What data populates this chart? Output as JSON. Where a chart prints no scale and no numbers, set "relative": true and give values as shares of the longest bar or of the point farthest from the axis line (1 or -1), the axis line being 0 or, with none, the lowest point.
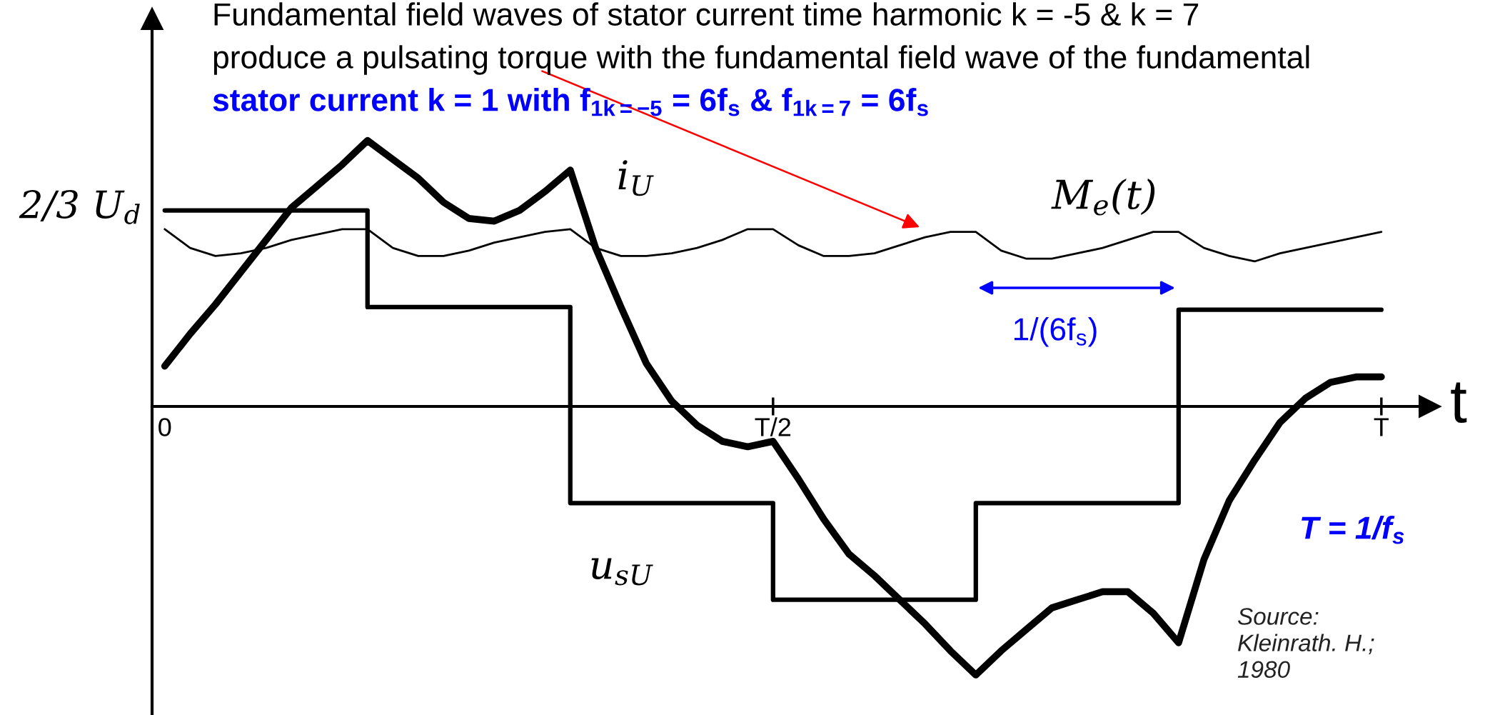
{
  "chart_data": {
    "type": "line",
    "title": "Fundamental field waves of stator current time harmonic k = -5 & k = 7",
    "xlabel": "t",
    "relative": true,
    "line_style": "solid",
    "categories": [
      "0",
      null,
      null,
      null,
      null,
      null,
      null,
      null,
      null,
      null,
      null,
      null,
      null,
      null,
      null,
      null,
      null,
      null,
      null,
      null,
      null,
      null,
      null,
      null,
      "T/2",
      null,
      null,
      null,
      null,
      null,
      null,
      null,
      null,
      null,
      null,
      null,
      null,
      null,
      null,
      null,
      null,
      null,
      null,
      null,
      null,
      null,
      null,
      null,
      "T"
    ],
    "series": [
      {
        "name": "i$_{U}$",
        "color": "#000000",
        "values": [
          0.15,
          0.27,
          0.38,
          0.5,
          0.62,
          0.74,
          0.82,
          0.9,
          0.99,
          0.92,
          0.85,
          0.76,
          0.7,
          0.69,
          0.73,
          0.8,
          0.88,
          0.59,
          0.37,
          0.16,
          0.02,
          -0.07,
          -0.13,
          -0.15,
          -0.13,
          -0.27,
          -0.42,
          -0.55,
          -0.63,
          -0.72,
          -0.81,
          -0.91,
          -1,
          -0.91,
          -0.83,
          -0.75,
          -0.72,
          -0.69,
          -0.69,
          -0.77,
          -0.88,
          -0.57,
          -0.35,
          -0.2,
          -0.06,
          0.03,
          0.09,
          0.11,
          0.11
        ]
      },
      {
        "name": "u$_{sU}$",
        "type": "step",
        "color": "#000000",
        "values": [
          0.73,
          0.73,
          0.73,
          0.73,
          0.73,
          0.73,
          0.73,
          0.73,
          0.37,
          0.37,
          0.37,
          0.37,
          0.37,
          0.37,
          0.37,
          0.37,
          -0.36,
          -0.36,
          -0.36,
          -0.36,
          -0.36,
          -0.36,
          -0.36,
          -0.36,
          -0.72,
          -0.72,
          -0.72,
          -0.72,
          -0.72,
          -0.72,
          -0.72,
          -0.72,
          -0.36,
          -0.36,
          -0.36,
          -0.36,
          -0.36,
          -0.36,
          -0.36,
          -0.36,
          0.36,
          0.36,
          0.36,
          0.36,
          0.36,
          0.36,
          0.36,
          0.36,
          0.36
        ]
      },
      {
        "name": "M$_{e}$(t)",
        "color": "#000000",
        "values": [
          0.66,
          0.59,
          0.56,
          0.57,
          0.59,
          0.62,
          0.64,
          0.66,
          0.66,
          0.59,
          0.56,
          0.56,
          0.58,
          0.61,
          0.63,
          0.65,
          0.66,
          0.59,
          0.56,
          0.56,
          0.57,
          0.59,
          0.62,
          0.66,
          0.66,
          0.6,
          0.56,
          0.56,
          0.57,
          0.6,
          0.63,
          0.65,
          0.65,
          0.58,
          0.55,
          0.55,
          0.57,
          0.59,
          0.62,
          0.65,
          0.65,
          0.59,
          0.56,
          0.54,
          0.57,
          0.59,
          0.61,
          0.63,
          0.65
        ]
      }
    ],
    "annotations": [
      "produce a pulsating torque with the fundamental field wave of the fundamental",
      "stator current k = 1 with f$_{1k=−5}$ = 6f$_{s}$ & f$_{1k=7}$ = 6f$_{s}$",
      "2/3 U$_{d}$",
      "1/(6f$_{s}$)",
      "T = 1/f$_{s}$",
      "Source:\nKleinrath. H.;\n1980"
    ]
  }
}
